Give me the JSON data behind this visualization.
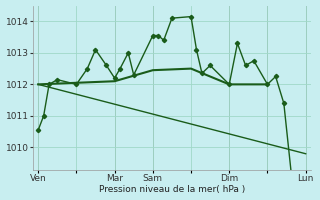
{
  "background_color": "#c8eef0",
  "plot_bg_color": "#c8eef0",
  "grid_color": "#a0d8c8",
  "line_color": "#1a5c1a",
  "xlabel_text": "Pression niveau de la mer( hPa )",
  "ylim": [
    1009.3,
    1014.5
  ],
  "yticks": [
    1010,
    1011,
    1012,
    1013,
    1014
  ],
  "xtick_labels": [
    "Ven",
    "",
    "Mar",
    "Sam",
    "",
    "Dim",
    "",
    "Lun"
  ],
  "xtick_positions": [
    0,
    14,
    28,
    42,
    56,
    70,
    84,
    98
  ],
  "vlines": [
    0,
    28,
    42,
    70,
    84,
    98
  ],
  "series1_x": [
    0,
    2,
    4,
    7,
    14,
    18,
    21,
    25,
    28,
    30,
    33,
    35,
    42,
    44,
    46,
    49,
    56,
    58,
    60,
    63,
    70,
    73,
    76,
    79,
    84,
    87,
    90,
    93,
    98
  ],
  "series1_y": [
    1010.55,
    1011.0,
    1012.0,
    1012.15,
    1012.0,
    1012.5,
    1013.1,
    1012.6,
    1012.2,
    1012.5,
    1013.0,
    1012.3,
    1013.55,
    1013.55,
    1013.4,
    1014.1,
    1014.15,
    1013.1,
    1012.35,
    1012.6,
    1012.0,
    1013.3,
    1012.6,
    1012.75,
    1012.0,
    1012.25,
    1011.4,
    1008.95,
    1008.7
  ],
  "series2_x": [
    0,
    14,
    28,
    42,
    56,
    70,
    84
  ],
  "series2_y": [
    1012.0,
    1012.05,
    1012.1,
    1012.45,
    1012.5,
    1012.0,
    1012.0
  ],
  "series3_x": [
    0,
    98
  ],
  "series3_y": [
    1012.0,
    1009.8
  ],
  "marker_x": [
    0,
    2,
    4,
    7,
    14,
    18,
    21,
    25,
    28,
    30,
    33,
    35,
    42,
    44,
    46,
    49,
    56,
    58,
    60,
    63,
    70,
    73,
    76,
    79,
    84,
    87,
    90,
    93,
    98
  ],
  "marker_y": [
    1010.55,
    1011.0,
    1012.0,
    1012.15,
    1012.0,
    1012.5,
    1013.1,
    1012.6,
    1012.2,
    1012.5,
    1013.0,
    1012.3,
    1013.55,
    1013.55,
    1013.4,
    1014.1,
    1014.15,
    1013.1,
    1012.35,
    1012.6,
    1012.0,
    1013.3,
    1012.6,
    1012.75,
    1012.0,
    1012.25,
    1011.4,
    1008.95,
    1008.7
  ]
}
